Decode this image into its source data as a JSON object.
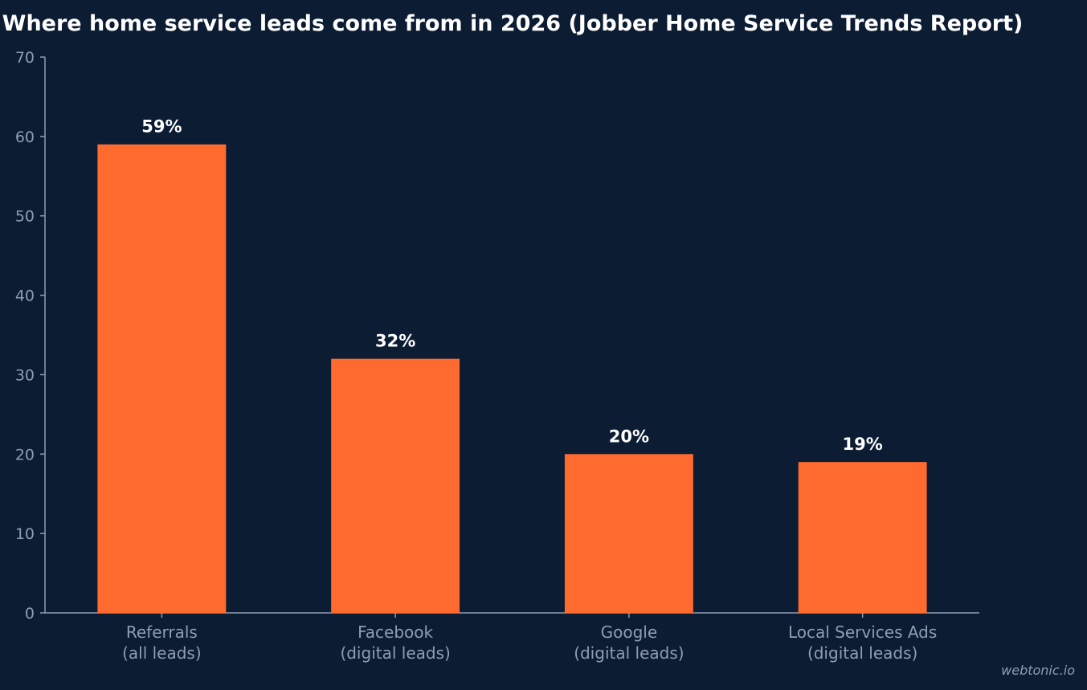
{
  "colors": {
    "background": "#0b1c33",
    "bar": "#ff6a2e",
    "axis": "#8f9db3",
    "text": "#8f9db3",
    "title": "#ffffff",
    "data_label": "#ffffff"
  },
  "watermark": "webtonic.io",
  "chart_data": {
    "type": "bar",
    "title": "Where home service leads come from in 2026 (Jobber Home Service Trends Report)",
    "xlabel": "",
    "ylabel": "",
    "ylim": [
      0,
      70
    ],
    "yticks": [
      0,
      10,
      20,
      30,
      40,
      50,
      60,
      70
    ],
    "grid": false,
    "categories": [
      [
        "Referrals",
        "(all leads)"
      ],
      [
        "Facebook",
        "(digital leads)"
      ],
      [
        "Google",
        "(digital leads)"
      ],
      [
        "Local Services Ads",
        "(digital leads)"
      ]
    ],
    "values": [
      59,
      32,
      20,
      19
    ],
    "data_labels": [
      "59%",
      "32%",
      "20%",
      "19%"
    ]
  }
}
